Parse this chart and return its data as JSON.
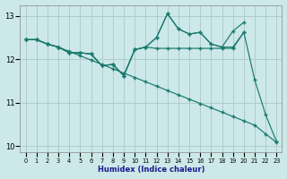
{
  "xlabel": "Humidex (Indice chaleur)",
  "xlim": [
    -0.5,
    23.5
  ],
  "ylim": [
    9.85,
    13.25
  ],
  "xticks": [
    0,
    1,
    2,
    3,
    4,
    5,
    6,
    7,
    8,
    9,
    10,
    11,
    12,
    13,
    14,
    15,
    16,
    17,
    18,
    19,
    20,
    21,
    22,
    23
  ],
  "yticks": [
    10,
    11,
    12,
    13
  ],
  "background_color": "#cce8e8",
  "grid_color": "#b0cccc",
  "line_color": "#1a7a6e",
  "line_A_x": [
    0,
    1,
    2,
    3,
    4,
    5,
    6,
    7,
    8,
    9,
    10,
    11,
    12,
    13,
    14,
    15,
    16,
    17,
    18,
    19,
    20,
    21,
    22,
    23
  ],
  "line_A_y": [
    12.45,
    12.45,
    12.35,
    12.28,
    12.18,
    12.08,
    11.98,
    11.88,
    11.78,
    11.68,
    11.58,
    11.48,
    11.38,
    11.28,
    11.18,
    11.08,
    10.98,
    10.88,
    10.78,
    10.68,
    10.58,
    10.48,
    10.28,
    10.08
  ],
  "line_B_x": [
    0,
    1,
    2,
    3,
    4,
    5,
    6,
    7,
    8,
    9,
    10,
    11,
    12,
    13,
    14,
    15,
    16,
    17,
    18,
    19,
    20,
    21,
    22,
    23
  ],
  "line_B_y": [
    12.45,
    12.45,
    12.35,
    12.28,
    12.15,
    12.15,
    12.12,
    11.85,
    11.88,
    11.62,
    12.22,
    12.28,
    12.25,
    12.25,
    12.25,
    12.25,
    12.25,
    12.25,
    12.25,
    12.25,
    12.62,
    11.52,
    10.72,
    10.1
  ],
  "line_C_x": [
    0,
    1,
    2,
    3,
    4,
    5,
    6,
    7,
    8,
    9,
    10,
    11,
    12,
    13,
    14,
    15,
    16,
    17,
    18,
    19,
    20
  ],
  "line_C_y": [
    12.45,
    12.45,
    12.35,
    12.28,
    12.15,
    12.15,
    12.12,
    11.85,
    11.88,
    11.62,
    12.22,
    12.28,
    12.5,
    13.05,
    12.7,
    12.58,
    12.62,
    12.35,
    12.28,
    12.28,
    12.62
  ],
  "line_D_x": [
    0,
    1,
    2,
    3,
    4,
    5,
    6,
    7,
    8,
    9,
    10,
    11,
    12,
    13,
    14,
    15,
    16,
    17,
    18,
    19,
    20
  ],
  "line_D_y": [
    12.45,
    12.45,
    12.35,
    12.28,
    12.15,
    12.15,
    12.12,
    11.85,
    11.88,
    11.62,
    12.22,
    12.28,
    12.5,
    13.05,
    12.7,
    12.58,
    12.62,
    12.35,
    12.28,
    12.65,
    12.85
  ]
}
